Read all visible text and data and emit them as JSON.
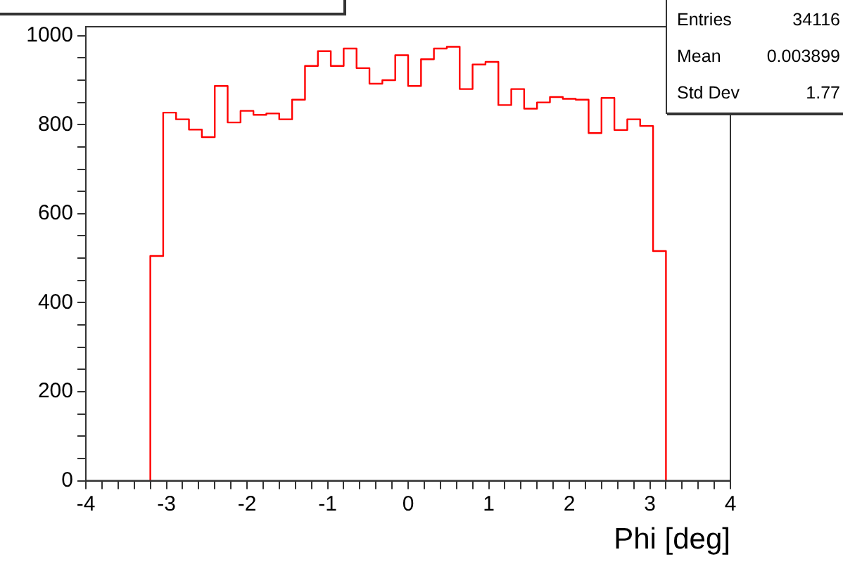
{
  "chart_data": {
    "type": "histogram",
    "xlabel": "Phi [deg]",
    "bins": [
      -3.2,
      -3.04,
      -2.88,
      -2.72,
      -2.56,
      -2.4,
      -2.24,
      -2.08,
      -1.92,
      -1.76,
      -1.6,
      -1.44,
      -1.28,
      -1.12,
      -0.96,
      -0.8,
      -0.64,
      -0.48,
      -0.32,
      -0.16,
      0,
      0.16,
      0.32,
      0.48,
      0.64,
      0.8,
      0.96,
      1.12,
      1.28,
      1.44,
      1.6,
      1.76,
      1.92,
      2.08,
      2.24,
      2.4,
      2.56,
      2.72,
      2.88,
      3.04,
      3.2
    ],
    "values": [
      505,
      827,
      812,
      789,
      772,
      887,
      805,
      831,
      822,
      825,
      812,
      856,
      932,
      965,
      932,
      971,
      927,
      892,
      900,
      956,
      887,
      947,
      971,
      975,
      880,
      935,
      941,
      844,
      880,
      836,
      850,
      862,
      858,
      856,
      781,
      860,
      788,
      812,
      797,
      516
    ],
    "color": "#ff0000",
    "xlim": [
      -4,
      4
    ],
    "xticks": [
      -4,
      {
        "value": -3.8,
        "label": null
      },
      {
        "value": -3.6,
        "label": null
      },
      {
        "value": -3.4,
        "label": null
      },
      {
        "value": -3.2,
        "label": null
      },
      -3,
      {
        "value": -2.8,
        "label": null
      },
      {
        "value": -2.6,
        "label": null
      },
      {
        "value": -2.4,
        "label": null
      },
      {
        "value": -2.2,
        "label": null
      },
      -2,
      {
        "value": -1.8,
        "label": null
      },
      {
        "value": -1.6,
        "label": null
      },
      {
        "value": -1.4,
        "label": null
      },
      {
        "value": -1.2,
        "label": null
      },
      -1,
      {
        "value": -0.8,
        "label": null
      },
      {
        "value": -0.6,
        "label": null
      },
      {
        "value": -0.4,
        "label": null
      },
      {
        "value": -0.2,
        "label": null
      },
      0,
      {
        "value": 0.2,
        "label": null
      },
      {
        "value": 0.4,
        "label": null
      },
      {
        "value": 0.6,
        "label": null
      },
      {
        "value": 0.8,
        "label": null
      },
      1,
      {
        "value": 1.2,
        "label": null
      },
      {
        "value": 1.4,
        "label": null
      },
      {
        "value": 1.6,
        "label": null
      },
      {
        "value": 1.8,
        "label": null
      },
      2,
      {
        "value": 2.2,
        "label": null
      },
      {
        "value": 2.4,
        "label": null
      },
      {
        "value": 2.6,
        "label": null
      },
      {
        "value": 2.8,
        "label": null
      },
      3,
      {
        "value": 3.2,
        "label": null
      },
      {
        "value": 3.4,
        "label": null
      },
      {
        "value": 3.6,
        "label": null
      },
      {
        "value": 3.8,
        "label": null
      },
      4
    ],
    "ylim": [
      0,
      1020
    ],
    "yticks": [
      0,
      {
        "value": 50,
        "label": null
      },
      {
        "value": 100,
        "label": null
      },
      {
        "value": 150,
        "label": null
      },
      200,
      {
        "value": 250,
        "label": null
      },
      {
        "value": 300,
        "label": null
      },
      {
        "value": 350,
        "label": null
      },
      400,
      {
        "value": 450,
        "label": null
      },
      {
        "value": 500,
        "label": null
      },
      {
        "value": 550,
        "label": null
      },
      600,
      {
        "value": 650,
        "label": null
      },
      {
        "value": 700,
        "label": null
      },
      {
        "value": 750,
        "label": null
      },
      800,
      {
        "value": 850,
        "label": null
      },
      {
        "value": 900,
        "label": null
      },
      {
        "value": 950,
        "label": null
      },
      1000
    ],
    "grid": false,
    "legend": false,
    "annotations": [
      "Entries",
      "34116",
      "Mean",
      "0.003899",
      "Std Dev",
      "1.77"
    ]
  }
}
